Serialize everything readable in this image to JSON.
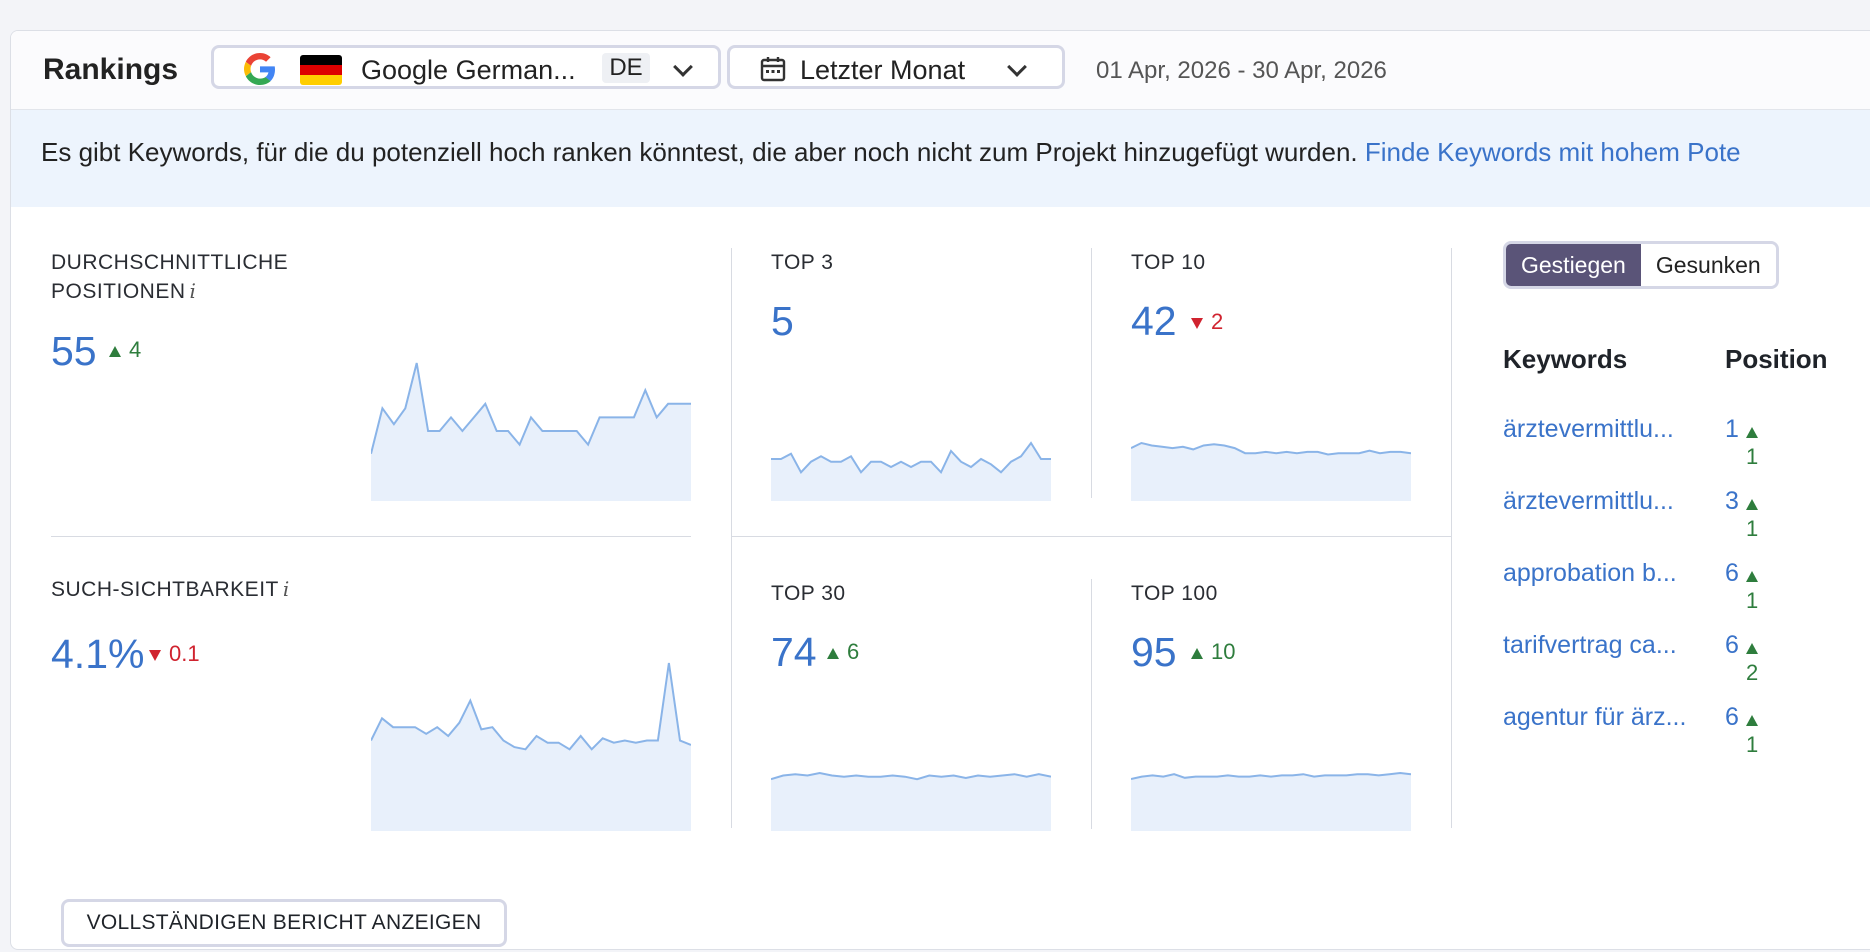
{
  "header": {
    "title": "Rankings",
    "engine": "Google German...",
    "country_code": "DE",
    "period": "Letzter Monat",
    "date_range": "01 Apr, 2026 - 30 Apr, 2026"
  },
  "banner": {
    "text": "Es gibt Keywords, für die du potenziell hoch ranken könntest, die aber noch nicht zum Projekt hinzugefügt wurden.",
    "link": "Finde Keywords mit hohem Pote"
  },
  "metrics": {
    "avg_position": {
      "label_line1": "DURCHSCHNITTLICHE",
      "label_line2": "POSITIONEN",
      "info": "i",
      "value": "55",
      "delta": "4",
      "direction": "up"
    },
    "visibility": {
      "label": "SUCH-SICHTBARKEIT",
      "info": "i",
      "value": "4.1%",
      "delta": "0.1",
      "direction": "down"
    },
    "top3": {
      "label": "TOP 3",
      "value": "5",
      "delta": "",
      "direction": "none"
    },
    "top10": {
      "label": "TOP 10",
      "value": "42",
      "delta": "2",
      "direction": "down"
    },
    "top30": {
      "label": "TOP 30",
      "value": "74",
      "delta": "6",
      "direction": "up"
    },
    "top100": {
      "label": "TOP 100",
      "value": "95",
      "delta": "10",
      "direction": "up"
    }
  },
  "toggle": {
    "active": "Gestiegen",
    "inactive": "Gesunken"
  },
  "keywords": {
    "col_keywords": "Keywords",
    "col_position": "Position",
    "rows": [
      {
        "name": "ärztevermittlu...",
        "position": "1",
        "delta": "1"
      },
      {
        "name": "ärztevermittlu...",
        "position": "3",
        "delta": "1"
      },
      {
        "name": "approbation b...",
        "position": "6",
        "delta": "1"
      },
      {
        "name": "tarifvertrag ca...",
        "position": "6",
        "delta": "2"
      },
      {
        "name": "agentur für ärz...",
        "position": "6",
        "delta": "1"
      }
    ]
  },
  "report_button": "VOLLSTÄNDIGEN BERICHT ANZEIGEN",
  "colors": {
    "accent": "#3a73c9",
    "up": "#2e7d3d",
    "down": "#d0232f",
    "toggle_active": "#5a5478",
    "spark_line": "#8ab4e8",
    "spark_fill": "#e8f0fb"
  },
  "sparklines": {
    "avg_position": [
      20,
      40,
      33,
      40,
      60,
      30,
      30,
      36,
      30,
      36,
      42,
      30,
      30,
      24,
      36,
      30,
      30,
      30,
      30,
      24,
      36,
      36,
      36,
      36,
      48,
      36,
      42,
      42,
      42
    ],
    "visibility": [
      40,
      50,
      46,
      46,
      46,
      43,
      46,
      42,
      48,
      58,
      45,
      46,
      40,
      37,
      36,
      42,
      39,
      39,
      36,
      42,
      36,
      41,
      39,
      40,
      39,
      40,
      40,
      75,
      40,
      38
    ],
    "top3": [
      30,
      30,
      34,
      20,
      28,
      32,
      28,
      28,
      32,
      20,
      28,
      28,
      24,
      28,
      24,
      28,
      28,
      20,
      36,
      28,
      24,
      30,
      26,
      20,
      28,
      32,
      42,
      30,
      30
    ],
    "top10": [
      40,
      44,
      42,
      41,
      40,
      41,
      39,
      42,
      43,
      42,
      40,
      36,
      36,
      37,
      36,
      37,
      36,
      37,
      37,
      35,
      36,
      36,
      36,
      38,
      36,
      37,
      37,
      36
    ],
    "top30": [
      40,
      43,
      44,
      43,
      45,
      43,
      42,
      43,
      42,
      42,
      43,
      42,
      40,
      43,
      42,
      43,
      41,
      43,
      42,
      43,
      44,
      42,
      44,
      42
    ],
    "top100": [
      42,
      44,
      45,
      44,
      46,
      43,
      44,
      44,
      44,
      45,
      44,
      44,
      45,
      44,
      45,
      45,
      46,
      44,
      45,
      45,
      45,
      46,
      46,
      45,
      46,
      47,
      46
    ]
  }
}
